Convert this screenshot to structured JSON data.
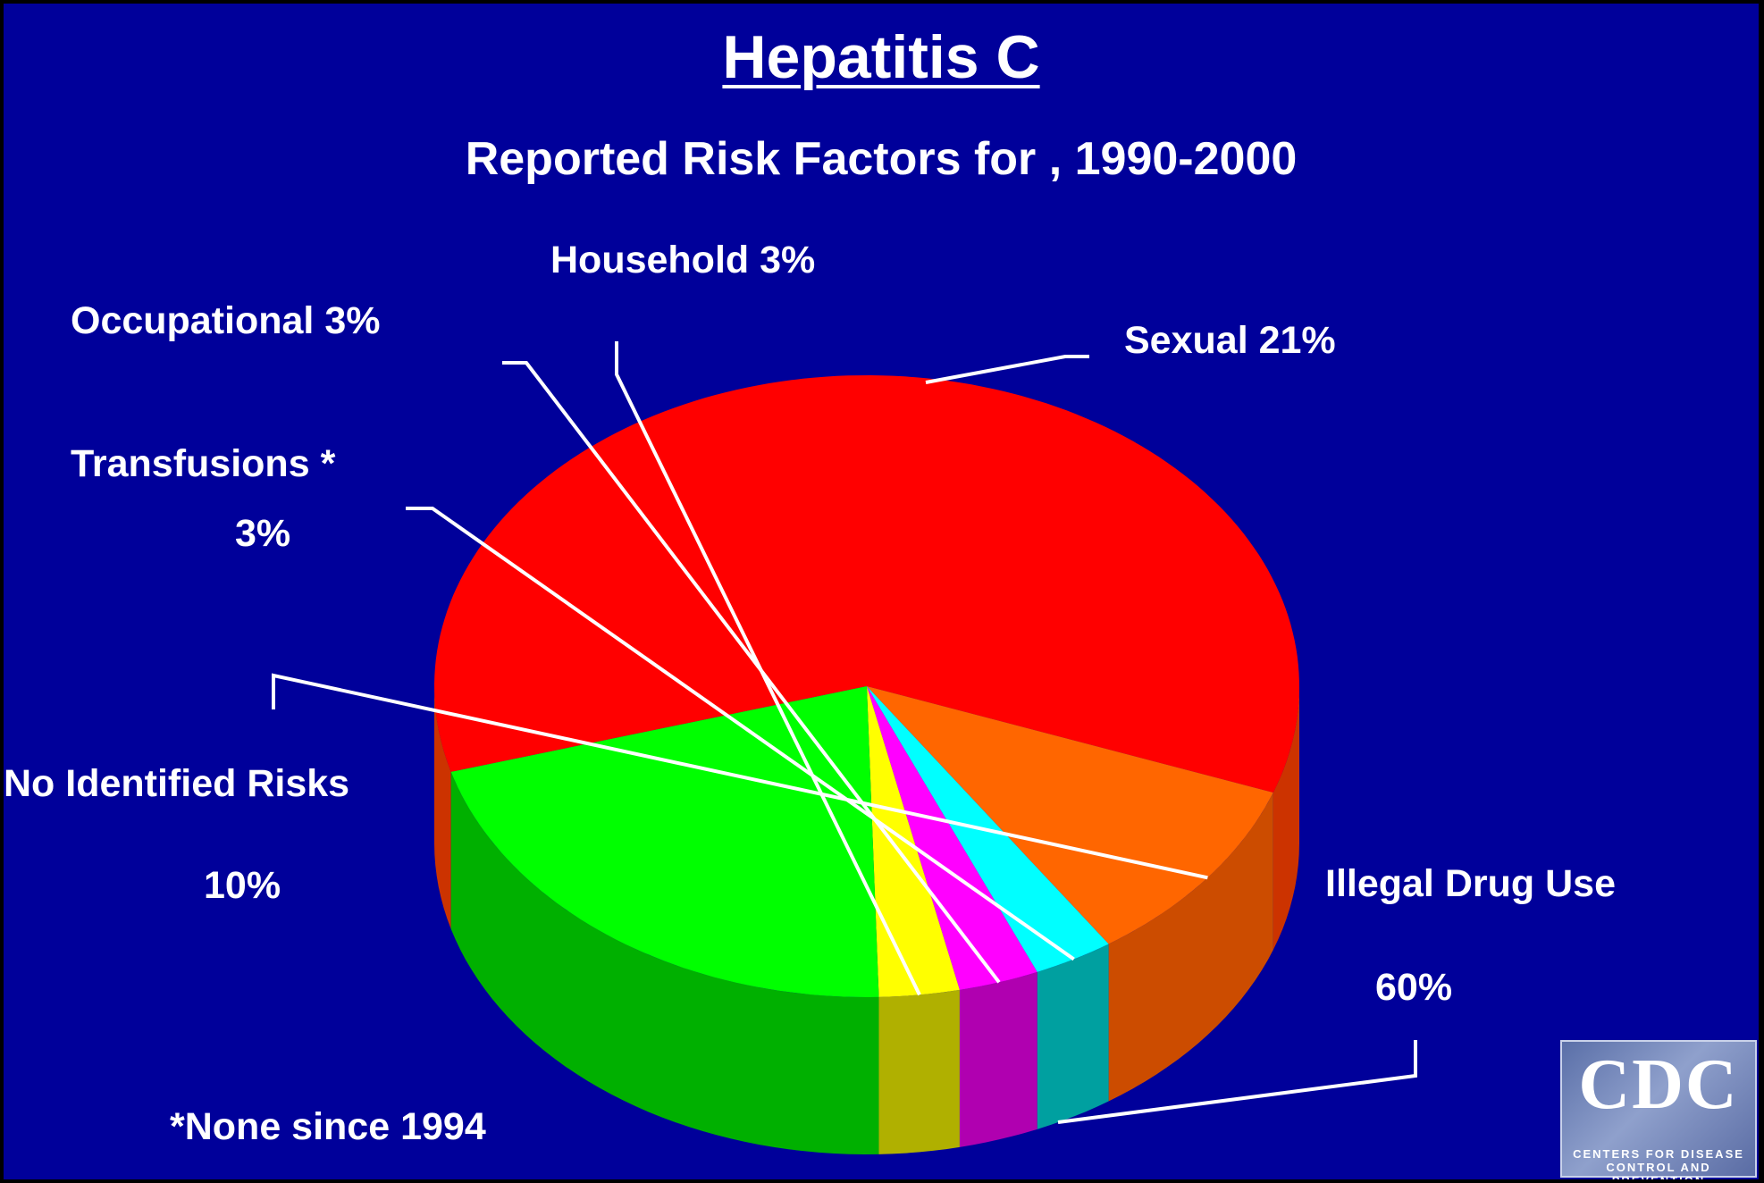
{
  "title": "Hepatitis C",
  "subtitle": "Reported Risk Factors for , 1990-2000",
  "footnote": "*None since 1994",
  "logo": {
    "mark": "CDC",
    "line1": "CENTERS FOR DISEASE",
    "line2": "CONTROL AND PREVENTION"
  },
  "colors": {
    "background": "#00009a",
    "text": "#ffffff",
    "leader": "#ffffff"
  },
  "chart_data": {
    "type": "pie",
    "style": "3d",
    "unit": "%",
    "slices": [
      {
        "name": "Illegal Drug Use",
        "value": 60,
        "label_line1": "Illegal Drug Use",
        "label_line2": "60%",
        "color": "#ff0000",
        "side_color": "#cc3300"
      },
      {
        "name": "No Identified Risks",
        "value": 10,
        "label_line1": "No Identified Risks",
        "label_line2": "10%",
        "color": "#ff6600",
        "side_color": "#cc4c00"
      },
      {
        "name": "Transfusions *",
        "value": 3,
        "label_line1": "Transfusions *",
        "label_line2": "3%",
        "color": "#00ffff",
        "side_color": "#00a0a0"
      },
      {
        "name": "Occupational",
        "value": 3,
        "label_line1": "Occupational  3%",
        "label_line2": "",
        "color": "#ff00ff",
        "side_color": "#b000b0"
      },
      {
        "name": "Household",
        "value": 3,
        "label_line1": "Household  3%",
        "label_line2": "",
        "color": "#ffff00",
        "side_color": "#b0b000"
      },
      {
        "name": "Sexual",
        "value": 21,
        "label_line1": "Sexual  21%",
        "label_line2": "",
        "color": "#00ff00",
        "side_color": "#00b000"
      }
    ]
  }
}
